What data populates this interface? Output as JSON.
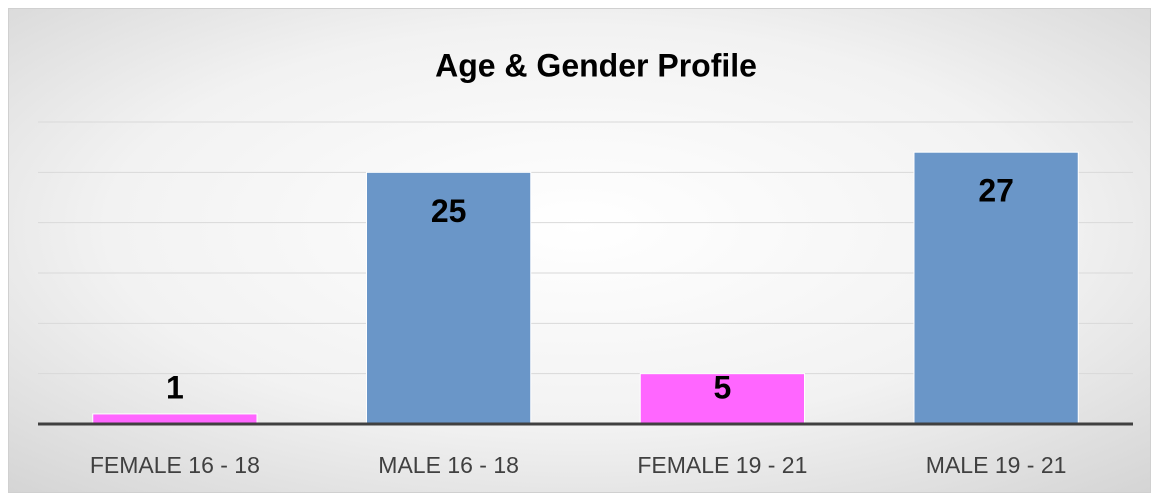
{
  "chart_data": {
    "type": "bar",
    "title": "Age & Gender Profile",
    "categories": [
      "FEMALE 16 - 18",
      "MALE 16 - 18",
      "FEMALE 19 - 21",
      "MALE 19 - 21"
    ],
    "values": [
      1,
      25,
      5,
      27
    ],
    "colors": [
      "#ff66ff",
      "#6a96c8",
      "#ff66ff",
      "#6a96c8"
    ],
    "ylim": [
      0,
      30
    ],
    "yticks": [
      0,
      5,
      10,
      15,
      20,
      25,
      30
    ],
    "grid": true
  }
}
